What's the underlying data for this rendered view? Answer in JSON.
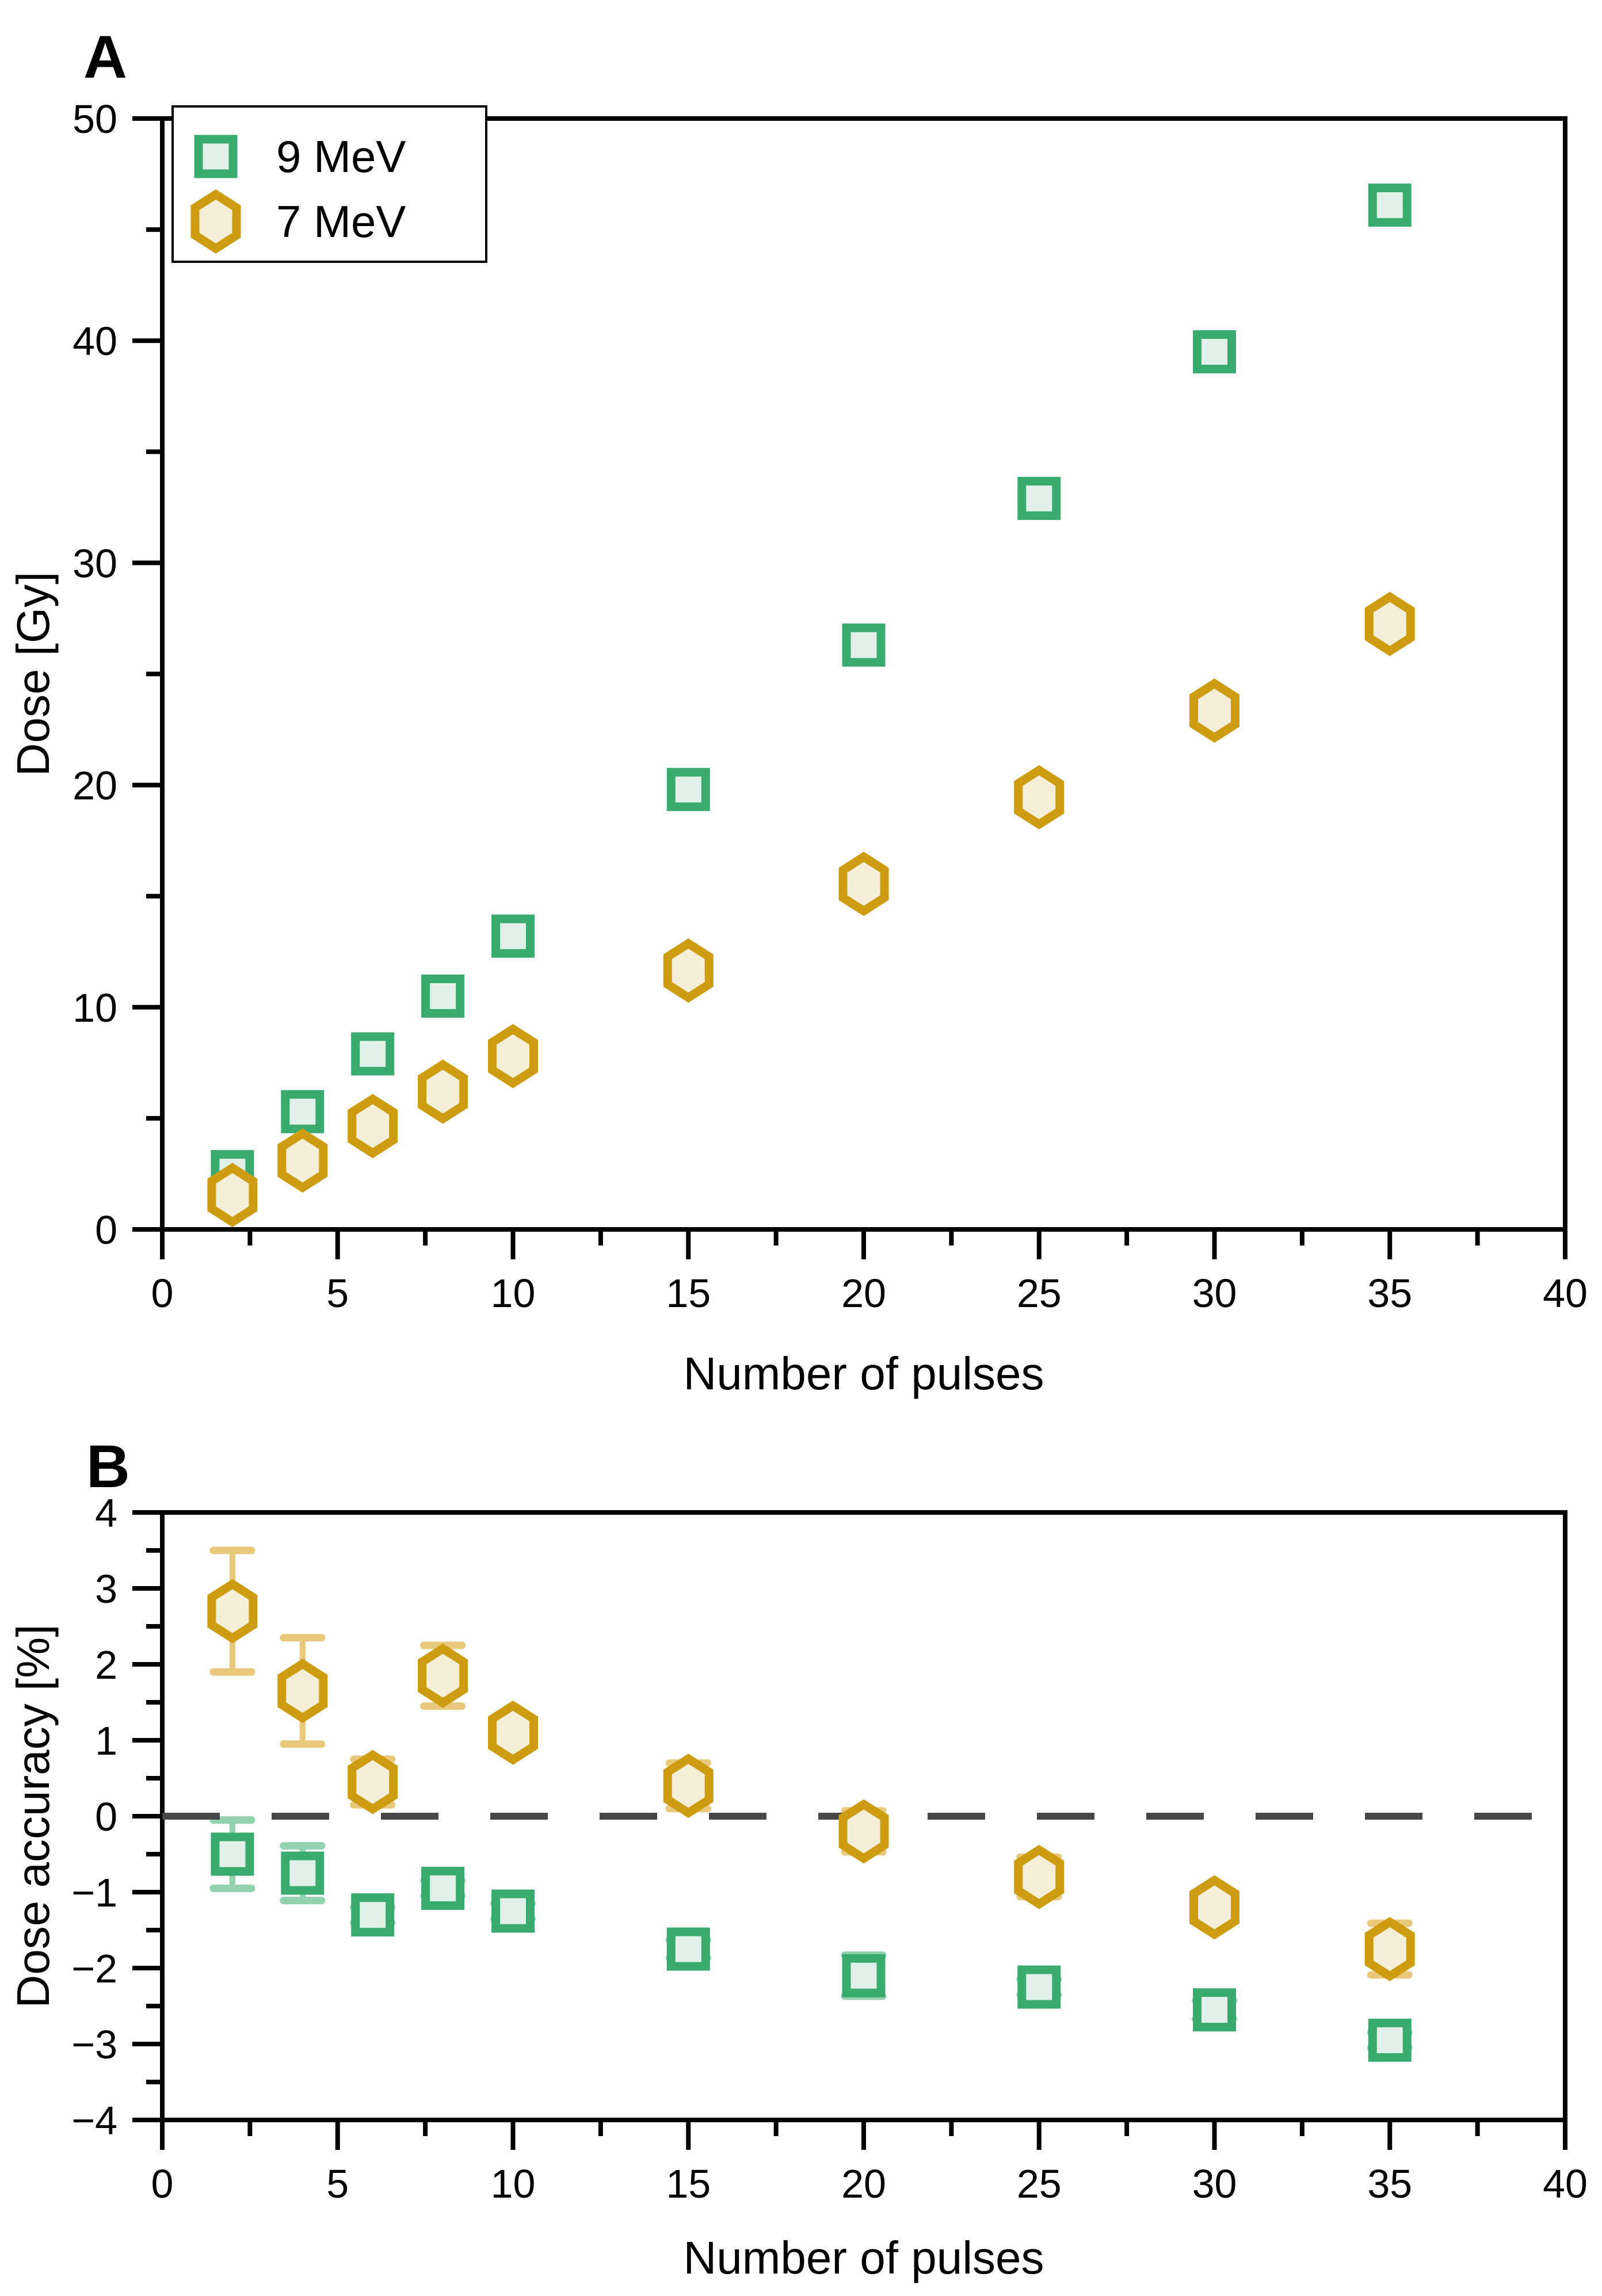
{
  "figure": {
    "background": "#ffffff",
    "colors": {
      "green_stroke": "#3aab6f",
      "green_fill": "#e1f1e7",
      "green_error": "#93d2ae",
      "gold_stroke": "#cd9c10",
      "gold_fill": "#f6efd7",
      "gold_error": "#e8c97c",
      "axis": "#000000",
      "zero_line": "#474747"
    }
  },
  "panels": [
    {
      "panel_label": "A",
      "x_title": "Number of pulses",
      "y_title": "Dose [Gy]",
      "x_tick_labels": [
        "0",
        "5",
        "10",
        "15",
        "20",
        "25",
        "30",
        "35",
        "40"
      ],
      "y_tick_labels": [
        "0",
        "10",
        "20",
        "30",
        "40",
        "50"
      ],
      "legend": {
        "items": [
          {
            "label": "9 MeV",
            "marker": "square"
          },
          {
            "label": "7 MeV",
            "marker": "hexagon"
          }
        ]
      }
    },
    {
      "panel_label": "B",
      "x_title": "Number of pulses",
      "y_title": "Dose accuracy [%]",
      "x_tick_labels": [
        "0",
        "5",
        "10",
        "15",
        "20",
        "25",
        "30",
        "35",
        "40"
      ],
      "y_tick_labels": [
        "−4",
        "−3",
        "−2",
        "−1",
        "0",
        "1",
        "2",
        "3",
        "4"
      ]
    }
  ],
  "chart_data": [
    {
      "type": "scatter",
      "title": "A",
      "xlabel": "Number of pulses",
      "ylabel": "Dose [Gy]",
      "xlim": [
        0,
        40
      ],
      "ylim": [
        0,
        50
      ],
      "x_major_ticks": [
        0,
        5,
        10,
        15,
        20,
        25,
        30,
        35,
        40
      ],
      "x_minor_step": 2.5,
      "y_major_ticks": [
        0,
        10,
        20,
        30,
        40,
        50
      ],
      "y_minor_step": 5,
      "grid": false,
      "legend_position": "upper-left",
      "x": [
        2,
        4,
        6,
        8,
        10,
        15,
        20,
        25,
        30,
        35
      ],
      "series": [
        {
          "name": "9 MeV",
          "marker": "square",
          "values": [
            2.6,
            5.3,
            7.9,
            10.5,
            13.2,
            19.8,
            26.3,
            32.9,
            39.5,
            46.1
          ]
        },
        {
          "name": "7 MeV",
          "marker": "hexagon",
          "values": [
            1.55,
            3.1,
            4.65,
            6.2,
            7.8,
            11.65,
            15.55,
            19.45,
            23.35,
            27.25
          ]
        }
      ]
    },
    {
      "type": "scatter",
      "title": "B",
      "xlabel": "Number of pulses",
      "ylabel": "Dose accuracy [%]",
      "xlim": [
        0,
        40
      ],
      "ylim": [
        -4,
        4
      ],
      "x_major_ticks": [
        0,
        5,
        10,
        15,
        20,
        25,
        30,
        35,
        40
      ],
      "x_minor_step": 2.5,
      "y_major_ticks": [
        -4,
        -3,
        -2,
        -1,
        0,
        1,
        2,
        3,
        4
      ],
      "y_minor_step": 0.5,
      "grid": false,
      "zero_line_dashed": true,
      "x": [
        2,
        4,
        6,
        8,
        10,
        15,
        20,
        25,
        30,
        35
      ],
      "series": [
        {
          "name": "9 MeV",
          "marker": "square",
          "values": [
            -0.5,
            -0.75,
            -1.3,
            -0.95,
            -1.25,
            -1.75,
            -2.1,
            -2.25,
            -2.55,
            -2.95
          ],
          "errors": [
            0.45,
            0.36,
            0.1,
            0.1,
            0.1,
            0.12,
            0.27,
            0.1,
            0.12,
            0.1
          ]
        },
        {
          "name": "7 MeV",
          "marker": "hexagon",
          "values": [
            2.7,
            1.65,
            0.45,
            1.85,
            1.1,
            0.4,
            -0.2,
            -0.8,
            -1.2,
            -1.75
          ],
          "errors": [
            0.8,
            0.7,
            0.3,
            0.4,
            0.2,
            0.3,
            0.27,
            0.26,
            0.13,
            0.34
          ]
        }
      ]
    }
  ]
}
